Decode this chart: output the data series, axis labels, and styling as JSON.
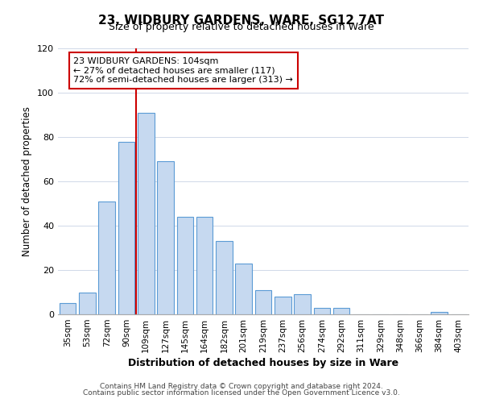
{
  "title": "23, WIDBURY GARDENS, WARE, SG12 7AT",
  "subtitle": "Size of property relative to detached houses in Ware",
  "xlabel": "Distribution of detached houses by size in Ware",
  "ylabel": "Number of detached properties",
  "bar_labels": [
    "35sqm",
    "53sqm",
    "72sqm",
    "90sqm",
    "109sqm",
    "127sqm",
    "145sqm",
    "164sqm",
    "182sqm",
    "201sqm",
    "219sqm",
    "237sqm",
    "256sqm",
    "274sqm",
    "292sqm",
    "311sqm",
    "329sqm",
    "348sqm",
    "366sqm",
    "384sqm",
    "403sqm"
  ],
  "bar_values": [
    5,
    10,
    51,
    78,
    91,
    69,
    44,
    44,
    33,
    23,
    11,
    8,
    9,
    3,
    3,
    0,
    0,
    0,
    0,
    1,
    0
  ],
  "bar_color": "#c6d9f0",
  "bar_edge_color": "#5b9bd5",
  "vline_x_index": 4,
  "vline_color": "#cc0000",
  "annotation_title": "23 WIDBURY GARDENS: 104sqm",
  "annotation_line1": "← 27% of detached houses are smaller (117)",
  "annotation_line2": "72% of semi-detached houses are larger (313) →",
  "annotation_box_color": "#ffffff",
  "annotation_box_edge": "#cc0000",
  "ylim": [
    0,
    120
  ],
  "yticks": [
    0,
    20,
    40,
    60,
    80,
    100,
    120
  ],
  "footer1": "Contains HM Land Registry data © Crown copyright and database right 2024.",
  "footer2": "Contains public sector information licensed under the Open Government Licence v3.0."
}
